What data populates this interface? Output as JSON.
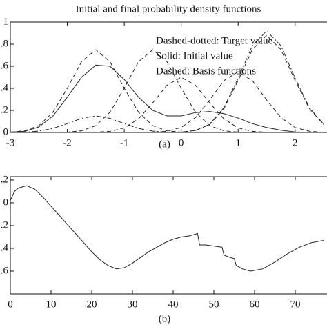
{
  "chart_data": [
    {
      "type": "line",
      "title": "Initial and final probability density functions",
      "annotations": [
        "Dashed-dotted: Target value",
        "Solid: Initial value",
        "Dashed: Basis functions"
      ],
      "caption": "(a)",
      "x": [
        -3,
        -2.75,
        -2.5,
        -2.25,
        -2,
        -1.75,
        -1.5,
        -1.25,
        -1,
        -0.75,
        -0.5,
        -0.25,
        0,
        0.25,
        0.5,
        0.75,
        1,
        1.25,
        1.5,
        1.75,
        2,
        2.25,
        2.5
      ],
      "xlim": [
        -3,
        2.56
      ],
      "ylim": [
        0,
        1
      ],
      "xticks": [
        -3,
        -2,
        -1,
        0,
        1,
        2
      ],
      "yticks": [
        {
          "value": 0,
          "label": "0"
        },
        {
          "value": 0.2,
          "label": ".2"
        },
        {
          "value": 0.4,
          "label": ".4"
        },
        {
          "value": 0.6,
          "label": ".6"
        },
        {
          "value": 0.8,
          "label": ".8"
        },
        {
          "value": 1,
          "label": "1"
        }
      ],
      "series": [
        {
          "color": "#222222",
          "dash": "solid",
          "values": [
            0.003,
            0.01,
            0.05,
            0.15,
            0.32,
            0.5,
            0.61,
            0.6,
            0.48,
            0.32,
            0.2,
            0.15,
            0.15,
            0.18,
            0.19,
            0.17,
            0.13,
            0.08,
            0.045,
            0.02,
            0.005,
            0.001,
            0
          ]
        },
        {
          "color": "#222222",
          "dash": "dashdot",
          "values": [
            0,
            0.003,
            0.012,
            0.037,
            0.08,
            0.128,
            0.15,
            0.128,
            0.08,
            0.037,
            0.012,
            0.003,
            0.003,
            0.018,
            0.075,
            0.225,
            0.492,
            0.787,
            0.92,
            0.787,
            0.492,
            0.225,
            0.075
          ]
        },
        {
          "color": "#222222",
          "dash": "dashed",
          "values": [
            0.003,
            0.015,
            0.062,
            0.184,
            0.401,
            0.641,
            0.75,
            0.641,
            0.401,
            0.184,
            0.062,
            0.015,
            0.003,
            0,
            0,
            0,
            0,
            0,
            0,
            0,
            0,
            0,
            0
          ]
        },
        {
          "color": "#222222",
          "dash": "dashed",
          "values": [
            0,
            0,
            0,
            0,
            0.003,
            0.015,
            0.062,
            0.184,
            0.401,
            0.641,
            0.75,
            0.641,
            0.401,
            0.184,
            0.062,
            0.015,
            0.003,
            0,
            0,
            0,
            0,
            0,
            0
          ]
        },
        {
          "color": "#222222",
          "dash": "dashed",
          "values": [
            0,
            0,
            0,
            0,
            0,
            0,
            0.002,
            0.01,
            0.041,
            0.123,
            0.268,
            0.428,
            0.5,
            0.428,
            0.268,
            0.123,
            0.041,
            0.01,
            0.002,
            0,
            0,
            0,
            0
          ]
        },
        {
          "color": "#222222",
          "dash": "dashed",
          "values": [
            0,
            0,
            0,
            0,
            0,
            0,
            0,
            0,
            0,
            0,
            0.002,
            0.011,
            0.045,
            0.135,
            0.294,
            0.47,
            0.55,
            0.47,
            0.294,
            0.135,
            0.045,
            0.011,
            0.002
          ]
        },
        {
          "color": "#222222",
          "dash": "dashed",
          "values": [
            0,
            0,
            0,
            0,
            0,
            0,
            0,
            0,
            0,
            0,
            0,
            0,
            0.003,
            0.018,
            0.072,
            0.216,
            0.471,
            0.752,
            0.88,
            0.752,
            0.471,
            0.216,
            0.072
          ]
        }
      ]
    },
    {
      "type": "line",
      "caption": "(b)",
      "x": [
        0,
        1,
        2,
        4,
        6,
        8,
        10,
        12,
        14,
        16,
        18,
        20,
        22,
        24,
        26,
        28,
        30,
        32,
        34,
        36,
        38,
        40,
        42,
        44,
        46,
        46.5,
        48,
        50,
        52,
        52.5,
        54,
        55,
        55.5,
        57,
        59,
        62,
        65,
        68,
        71,
        74,
        77
      ],
      "xlim": [
        0,
        77.8
      ],
      "ylim": [
        -0.8,
        0.23
      ],
      "xticks": [
        0,
        10,
        20,
        30,
        40,
        50,
        60,
        70
      ],
      "yticks": [
        {
          "value": -0.6,
          "label": ".6"
        },
        {
          "value": -0.4,
          "label": ".4"
        },
        {
          "value": -0.2,
          "label": ".2"
        },
        0,
        {
          "value": 0.2,
          "label": ".2"
        }
      ],
      "series": [
        {
          "color": "#222222",
          "dash": "solid",
          "values": [
            0.02,
            0.1,
            0.13,
            0.15,
            0.12,
            0.05,
            -0.03,
            -0.11,
            -0.19,
            -0.27,
            -0.35,
            -0.43,
            -0.5,
            -0.55,
            -0.58,
            -0.57,
            -0.53,
            -0.48,
            -0.43,
            -0.39,
            -0.35,
            -0.32,
            -0.3,
            -0.29,
            -0.27,
            -0.37,
            -0.37,
            -0.38,
            -0.39,
            -0.46,
            -0.48,
            -0.49,
            -0.55,
            -0.58,
            -0.6,
            -0.58,
            -0.52,
            -0.45,
            -0.39,
            -0.35,
            -0.33
          ]
        }
      ]
    }
  ]
}
